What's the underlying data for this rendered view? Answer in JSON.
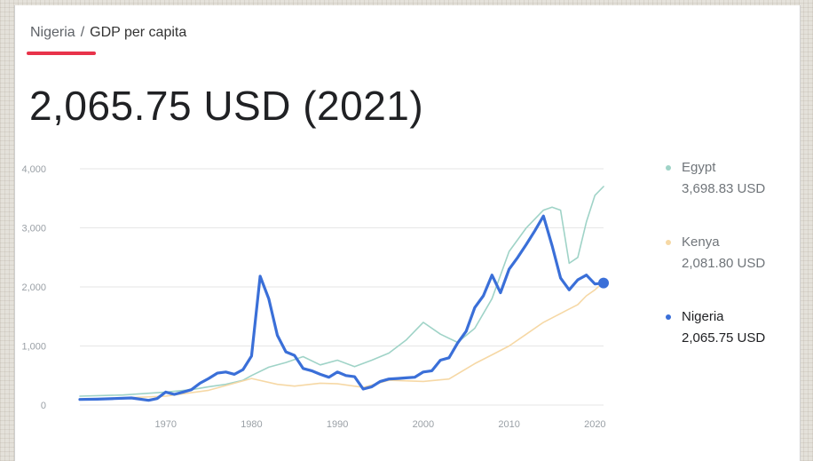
{
  "breadcrumb": {
    "root": "Nigeria",
    "separator": "/",
    "current": "GDP per capita"
  },
  "headline": "2,065.75 USD (2021)",
  "colors": {
    "accent": "#e8334a",
    "egypt": "#9fd3c7",
    "kenya": "#f6d8a5",
    "nigeria": "#3a6fd8"
  },
  "legend": [
    {
      "name": "Egypt",
      "value": "3,698.83 USD",
      "color": "#9fd3c7"
    },
    {
      "name": "Kenya",
      "value": "2,081.80 USD",
      "color": "#f6d8a5"
    },
    {
      "name": "Nigeria",
      "value": "2,065.75 USD",
      "color": "#3a6fd8"
    }
  ],
  "chart_data": {
    "type": "line",
    "title": "",
    "xlabel": "",
    "ylabel": "",
    "xlim": [
      1960,
      2021
    ],
    "ylim": [
      0,
      4000
    ],
    "y_ticks": [
      0,
      1000,
      2000,
      3000,
      4000
    ],
    "y_tick_labels": [
      "0",
      "1,000",
      "2,000",
      "3,000",
      "4,000"
    ],
    "x_ticks": [
      1970,
      1980,
      1990,
      2000,
      2010,
      2020
    ],
    "x_tick_labels": [
      "1970",
      "1980",
      "1990",
      "2000",
      "2010",
      "2020"
    ],
    "grid": true,
    "legend_position": "right",
    "series": [
      {
        "name": "Egypt",
        "x": [
          1960,
          1965,
          1970,
          1973,
          1975,
          1977,
          1979,
          1980,
          1982,
          1984,
          1986,
          1988,
          1990,
          1992,
          1994,
          1996,
          1998,
          2000,
          2002,
          2004,
          2006,
          2008,
          2010,
          2012,
          2014,
          2015,
          2016,
          2017,
          2018,
          2019,
          2020,
          2021
        ],
        "y": [
          150,
          170,
          220,
          260,
          310,
          350,
          420,
          500,
          640,
          720,
          820,
          680,
          760,
          650,
          760,
          880,
          1100,
          1400,
          1200,
          1060,
          1300,
          1800,
          2600,
          3000,
          3300,
          3350,
          3300,
          2400,
          2500,
          3100,
          3550,
          3698.83
        ]
      },
      {
        "name": "Kenya",
        "x": [
          1960,
          1965,
          1970,
          1975,
          1980,
          1983,
          1985,
          1988,
          1990,
          1993,
          1996,
          2000,
          2003,
          2006,
          2008,
          2010,
          2012,
          2014,
          2016,
          2018,
          2019,
          2020,
          2021
        ],
        "y": [
          100,
          120,
          150,
          250,
          450,
          350,
          320,
          370,
          360,
          300,
          420,
          400,
          440,
          700,
          850,
          1000,
          1200,
          1400,
          1550,
          1700,
          1850,
          1950,
          2081.8
        ]
      },
      {
        "name": "Nigeria",
        "x": [
          1960,
          1962,
          1964,
          1966,
          1968,
          1969,
          1970,
          1971,
          1972,
          1973,
          1974,
          1975,
          1976,
          1977,
          1978,
          1979,
          1980,
          1981,
          1982,
          1983,
          1984,
          1985,
          1986,
          1987,
          1988,
          1989,
          1990,
          1991,
          1992,
          1993,
          1994,
          1995,
          1996,
          1997,
          1998,
          1999,
          2000,
          2001,
          2002,
          2003,
          2004,
          2005,
          2006,
          2007,
          2008,
          2009,
          2010,
          2011,
          2012,
          2013,
          2014,
          2015,
          2016,
          2017,
          2018,
          2019,
          2020,
          2021
        ],
        "y": [
          95,
          100,
          110,
          120,
          80,
          110,
          220,
          180,
          220,
          260,
          370,
          450,
          540,
          560,
          520,
          600,
          830,
          2180,
          1800,
          1180,
          900,
          840,
          620,
          580,
          520,
          470,
          560,
          500,
          480,
          270,
          310,
          400,
          440,
          450,
          460,
          470,
          560,
          580,
          760,
          800,
          1050,
          1250,
          1650,
          1850,
          2200,
          1900,
          2300,
          2500,
          2720,
          2950,
          3200,
          2700,
          2150,
          1950,
          2120,
          2200,
          2050,
          2065.75
        ]
      }
    ]
  }
}
